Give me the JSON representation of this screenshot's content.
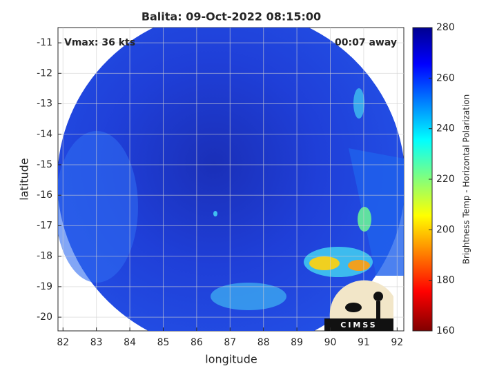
{
  "chart_data": {
    "type": "image",
    "title": "Balita: 09-Oct-2022 08:15:00",
    "annotations": [
      "Vmax: 36 kts",
      "00:07 away"
    ],
    "logo": "CIMSS",
    "xlabel": "longitude",
    "ylabel": "latitude",
    "xlim": [
      81.85,
      92.2
    ],
    "xticks": [
      82,
      83,
      84,
      85,
      86,
      87,
      88,
      89,
      90,
      91,
      92
    ],
    "ylim": [
      -20.45,
      -10.5
    ],
    "yticks": [
      -20,
      -19,
      -18,
      -17,
      -16,
      -15,
      -14,
      -13,
      -12,
      -11
    ],
    "grid": true,
    "colorbar": {
      "label": "Brightness Temp - Horizontal Polarization",
      "lim": [
        160,
        280
      ],
      "ticks": [
        160,
        180,
        200,
        220,
        240,
        260,
        280
      ],
      "colormap": "jet"
    }
  }
}
